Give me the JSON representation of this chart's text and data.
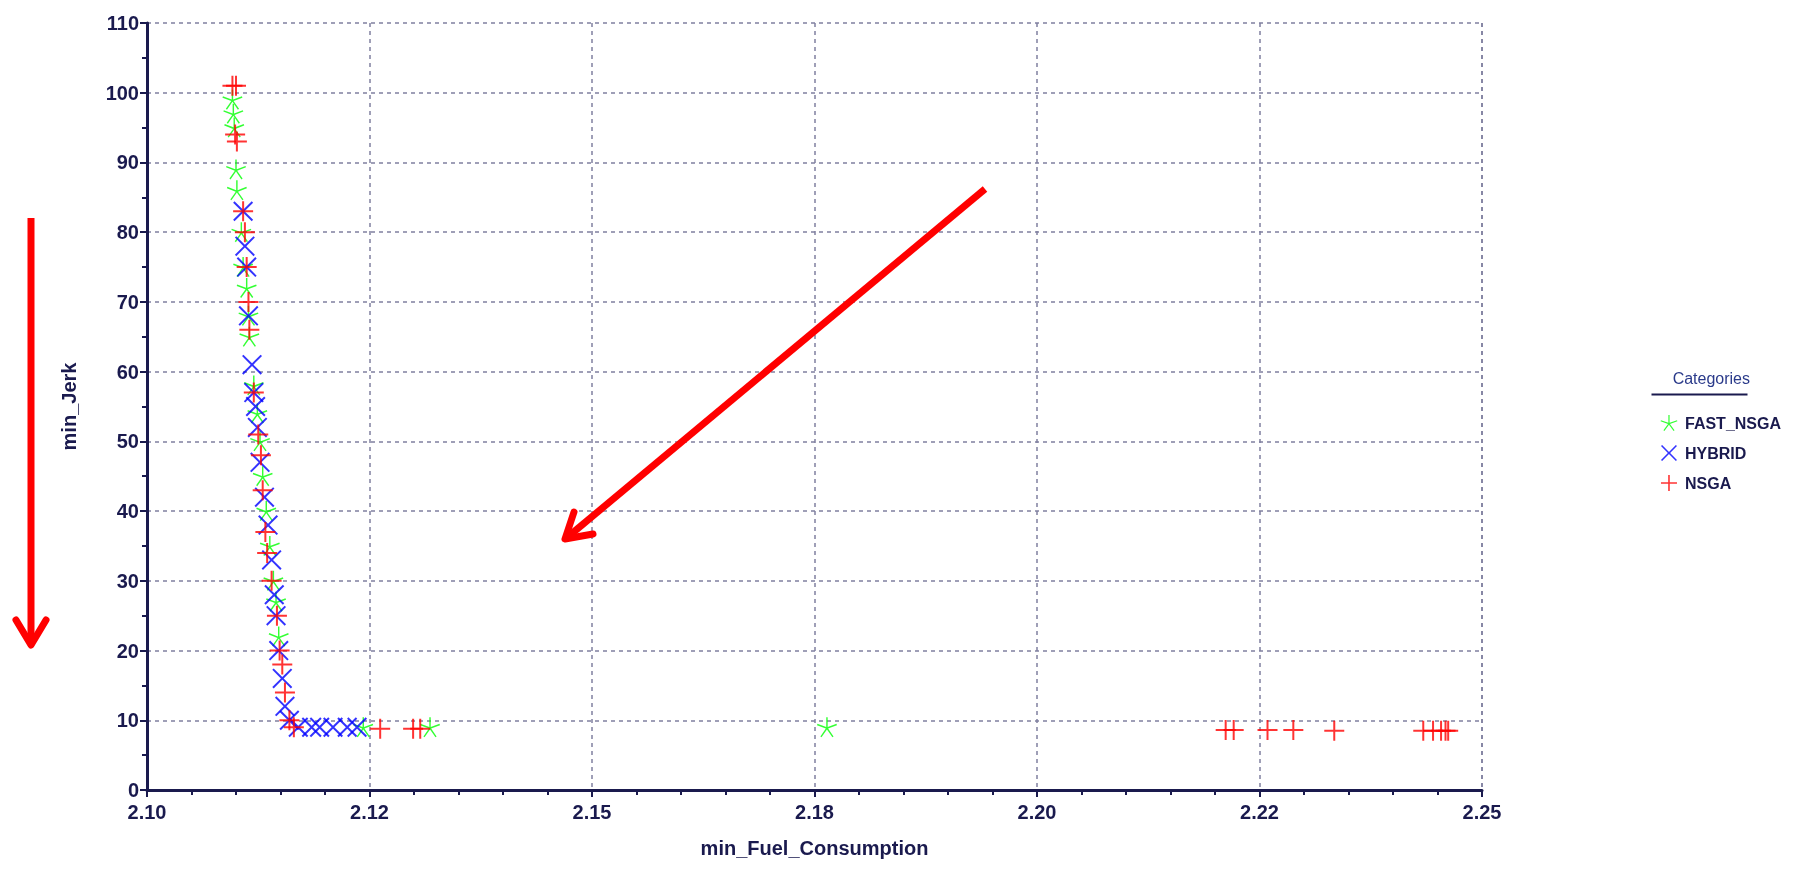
{
  "chart_data": {
    "type": "scatter",
    "xlabel": "min_Fuel_Consumption",
    "ylabel": "min_Jerk",
    "legend_title": "Categories",
    "legend": "right",
    "grid": true,
    "xlim": [
      2.1,
      2.25
    ],
    "xticks": [
      {
        "value": 2.1,
        "label": "2.10"
      },
      {
        "value": 2.125,
        "label": "2.12"
      },
      {
        "value": 2.15,
        "label": "2.15"
      },
      {
        "value": 2.175,
        "label": "2.18"
      },
      {
        "value": 2.2,
        "label": "2.20"
      },
      {
        "value": 2.225,
        "label": "2.22"
      },
      {
        "value": 2.25,
        "label": "2.25"
      }
    ],
    "ylim": [
      0,
      110
    ],
    "yticks": [
      0,
      10,
      20,
      30,
      40,
      50,
      60,
      70,
      80,
      90,
      100,
      110
    ],
    "series": [
      {
        "name": "FAST_NSGA",
        "color": "#00ff00",
        "marker": "star",
        "x": [
          2.1096,
          2.1097,
          2.1098,
          2.11,
          2.1101,
          2.1106,
          2.1108,
          2.1112,
          2.1114,
          2.1115,
          2.112,
          2.1124,
          2.1127,
          2.113,
          2.1134,
          2.1138,
          2.1142,
          2.1145,
          2.1148,
          2.1243,
          2.1318,
          2.1764
        ],
        "values": [
          99,
          97,
          95,
          89,
          86,
          80,
          75,
          72,
          68,
          65,
          58,
          54,
          50,
          45,
          40,
          35,
          30,
          27,
          22,
          9,
          9,
          9
        ]
      },
      {
        "name": "HYBRID",
        "color": "#0000ff",
        "marker": "cross",
        "x": [
          2.1108,
          2.111,
          2.1112,
          2.1114,
          2.1118,
          2.112,
          2.1122,
          2.1124,
          2.1127,
          2.1132,
          2.1136,
          2.114,
          2.1143,
          2.1145,
          2.1148,
          2.1152,
          2.1155,
          2.116,
          2.117,
          2.1185,
          2.1194,
          2.1209,
          2.1225,
          2.1236
        ],
        "values": [
          83,
          78,
          75,
          68,
          61,
          57,
          55,
          52,
          47,
          42,
          38,
          33,
          28,
          25,
          20,
          16,
          12,
          10,
          9,
          9,
          9,
          9,
          9,
          9
        ]
      },
      {
        "name": "NSGA",
        "color": "#ff0000",
        "marker": "plus",
        "x": [
          2.1096,
          2.11,
          2.1099,
          2.1101,
          2.1108,
          2.111,
          2.1112,
          2.1114,
          2.1115,
          2.112,
          2.1125,
          2.1128,
          2.113,
          2.1133,
          2.1135,
          2.114,
          2.1146,
          2.1149,
          2.1152,
          2.1155,
          2.116,
          2.1165,
          2.1262,
          2.1299,
          2.1307,
          2.2212,
          2.2221,
          2.2259,
          2.2288,
          2.2334,
          2.2434,
          2.2445,
          2.2454,
          2.2459,
          2.2462
        ],
        "values": [
          101,
          101,
          94,
          93,
          83,
          80,
          75,
          70,
          66,
          57,
          51,
          48,
          43,
          37,
          34,
          30,
          25,
          20,
          18,
          14,
          10,
          9,
          8.8,
          8.8,
          8.8,
          8.6,
          8.6,
          8.6,
          8.6,
          8.5,
          8.5,
          8.5,
          8.5,
          8.5,
          8.5
        ]
      }
    ]
  }
}
